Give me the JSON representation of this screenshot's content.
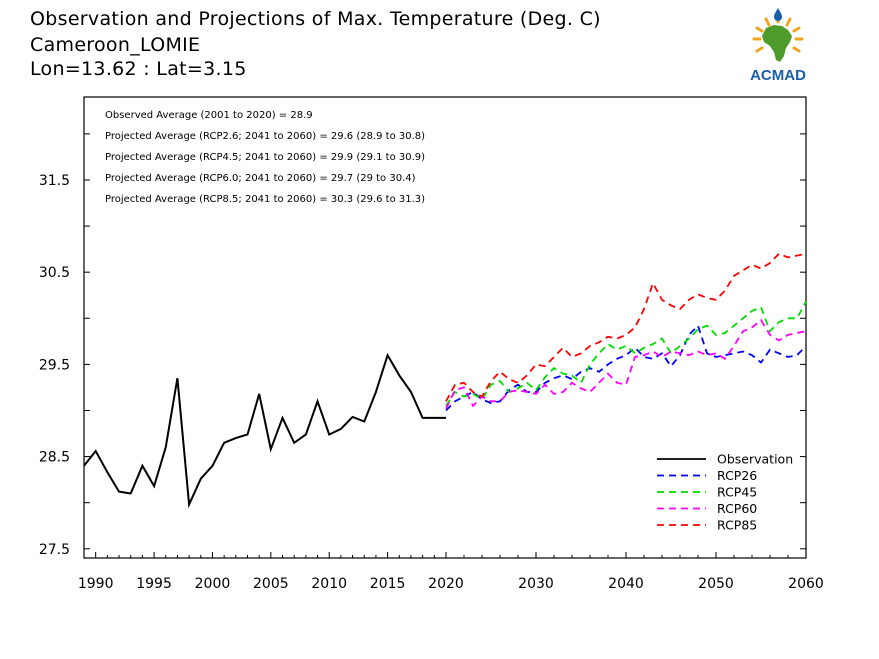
{
  "header": {
    "title": "Observation and Projections of Max. Temperature (Deg. C)",
    "location": "Cameroon_LOMIE",
    "coordinates": "Lon=13.62 : Lat=3.15"
  },
  "logo": {
    "text": "ACMAD",
    "color": "#1a5ea8",
    "accent": "#f2a51c",
    "africa_color": "#4e9a2a"
  },
  "chart_data": {
    "type": "line",
    "title": "Observation and Projections of Max. Temperature (Deg. C)",
    "ylim": [
      27.4,
      32.4
    ],
    "yticks": [
      27.5,
      28.5,
      29.5,
      30.5,
      31.5
    ],
    "xticks": [
      1990,
      1995,
      2000,
      2005,
      2010,
      2015,
      2020,
      2030,
      2040,
      2050,
      2060
    ],
    "x_segments": [
      {
        "from": 1989,
        "to": 2020
      },
      {
        "from": 2020,
        "to": 2060
      }
    ],
    "grid": false,
    "legend_position": "lower-right",
    "annotations": [
      "Observed Average (2001 to 2020) = 28.9",
      "Projected Average (RCP2.6; 2041 to 2060) = 29.6 (28.9 to 30.8)",
      "Projected Average (RCP4.5; 2041 to 2060) = 29.9 (29.1 to 30.9)",
      "Projected Average (RCP6.0; 2041 to 2060) = 29.7 (29 to 30.4)",
      "Projected Average (RCP8.5; 2041 to 2060) = 30.3 (29.6 to 31.3)"
    ],
    "series": [
      {
        "name": "Observation",
        "color": "#000000",
        "dashed": false,
        "x": [
          1989,
          1990,
          1991,
          1992,
          1993,
          1994,
          1995,
          1996,
          1997,
          1998,
          1999,
          2000,
          2001,
          2002,
          2003,
          2004,
          2005,
          2006,
          2007,
          2008,
          2009,
          2010,
          2011,
          2012,
          2013,
          2014,
          2015,
          2016,
          2017,
          2018,
          2019,
          2020
        ],
        "y": [
          28.4,
          28.56,
          28.33,
          28.12,
          28.1,
          28.4,
          28.18,
          28.6,
          29.35,
          27.98,
          28.26,
          28.4,
          28.65,
          28.7,
          28.74,
          29.18,
          28.58,
          28.92,
          28.65,
          28.74,
          29.1,
          28.74,
          28.8,
          28.93,
          28.88,
          29.2,
          29.6,
          29.38,
          29.2,
          28.92,
          28.92,
          28.92
        ]
      },
      {
        "name": "RCP26",
        "color": "#0000ff",
        "dashed": true,
        "x": [
          2020,
          2021,
          2022,
          2023,
          2024,
          2025,
          2026,
          2027,
          2028,
          2029,
          2030,
          2031,
          2032,
          2033,
          2034,
          2035,
          2036,
          2037,
          2038,
          2039,
          2040,
          2041,
          2042,
          2043,
          2044,
          2045,
          2046,
          2047,
          2048,
          2049,
          2050,
          2051,
          2052,
          2053,
          2054,
          2055,
          2056,
          2057,
          2058,
          2059,
          2060
        ],
        "y": [
          29.0,
          29.1,
          29.15,
          29.2,
          29.12,
          29.08,
          29.1,
          29.22,
          29.28,
          29.2,
          29.2,
          29.3,
          29.35,
          29.38,
          29.34,
          29.42,
          29.46,
          29.42,
          29.5,
          29.56,
          29.6,
          29.68,
          29.58,
          29.56,
          29.62,
          29.48,
          29.6,
          29.82,
          29.92,
          29.62,
          29.58,
          29.6,
          29.62,
          29.64,
          29.6,
          29.52,
          29.66,
          29.62,
          29.58,
          29.6,
          29.7
        ]
      },
      {
        "name": "RCP45",
        "color": "#00dd00",
        "dashed": true,
        "x": [
          2020,
          2021,
          2022,
          2023,
          2024,
          2025,
          2026,
          2027,
          2028,
          2029,
          2030,
          2031,
          2032,
          2033,
          2034,
          2035,
          2036,
          2037,
          2038,
          2039,
          2040,
          2041,
          2042,
          2043,
          2044,
          2045,
          2046,
          2047,
          2048,
          2049,
          2050,
          2051,
          2052,
          2053,
          2054,
          2055,
          2056,
          2057,
          2058,
          2059,
          2060
        ],
        "y": [
          29.05,
          29.2,
          29.15,
          29.18,
          29.12,
          29.28,
          29.32,
          29.2,
          29.24,
          29.3,
          29.22,
          29.36,
          29.46,
          29.4,
          29.38,
          29.3,
          29.5,
          29.62,
          29.72,
          29.66,
          29.7,
          29.62,
          29.68,
          29.72,
          29.78,
          29.62,
          29.7,
          29.78,
          29.88,
          29.92,
          29.82,
          29.84,
          29.92,
          30.0,
          30.08,
          30.12,
          29.86,
          29.96,
          30.0,
          30.0,
          30.18
        ]
      },
      {
        "name": "RCP60",
        "color": "#ff00ff",
        "dashed": true,
        "x": [
          2020,
          2021,
          2022,
          2023,
          2024,
          2025,
          2026,
          2027,
          2028,
          2029,
          2030,
          2031,
          2032,
          2033,
          2034,
          2035,
          2036,
          2037,
          2038,
          2039,
          2040,
          2041,
          2042,
          2043,
          2044,
          2045,
          2046,
          2047,
          2048,
          2049,
          2050,
          2051,
          2052,
          2053,
          2054,
          2055,
          2056,
          2057,
          2058,
          2059,
          2060
        ],
        "y": [
          29.02,
          29.22,
          29.25,
          29.05,
          29.15,
          29.1,
          29.1,
          29.2,
          29.22,
          29.2,
          29.18,
          29.28,
          29.18,
          29.2,
          29.3,
          29.24,
          29.2,
          29.3,
          29.4,
          29.3,
          29.28,
          29.58,
          29.6,
          29.64,
          29.58,
          29.64,
          29.62,
          29.6,
          29.64,
          29.6,
          29.62,
          29.56,
          29.7,
          29.86,
          29.9,
          29.98,
          29.82,
          29.76,
          29.82,
          29.84,
          29.86
        ]
      },
      {
        "name": "RCP85",
        "color": "#ff0000",
        "dashed": true,
        "x": [
          2020,
          2021,
          2022,
          2023,
          2024,
          2025,
          2026,
          2027,
          2028,
          2029,
          2030,
          2031,
          2032,
          2033,
          2034,
          2035,
          2036,
          2037,
          2038,
          2039,
          2040,
          2041,
          2042,
          2043,
          2044,
          2045,
          2046,
          2047,
          2048,
          2049,
          2050,
          2051,
          2052,
          2053,
          2054,
          2055,
          2056,
          2057,
          2058,
          2059,
          2060
        ],
        "y": [
          29.1,
          29.28,
          29.3,
          29.2,
          29.15,
          29.32,
          29.42,
          29.34,
          29.3,
          29.38,
          29.5,
          29.48,
          29.58,
          29.68,
          29.58,
          29.62,
          29.7,
          29.74,
          29.8,
          29.78,
          29.82,
          29.9,
          30.1,
          30.38,
          30.2,
          30.14,
          30.1,
          30.2,
          30.26,
          30.22,
          30.2,
          30.3,
          30.46,
          30.52,
          30.58,
          30.54,
          30.6,
          30.7,
          30.66,
          30.68,
          30.7
        ]
      }
    ]
  }
}
